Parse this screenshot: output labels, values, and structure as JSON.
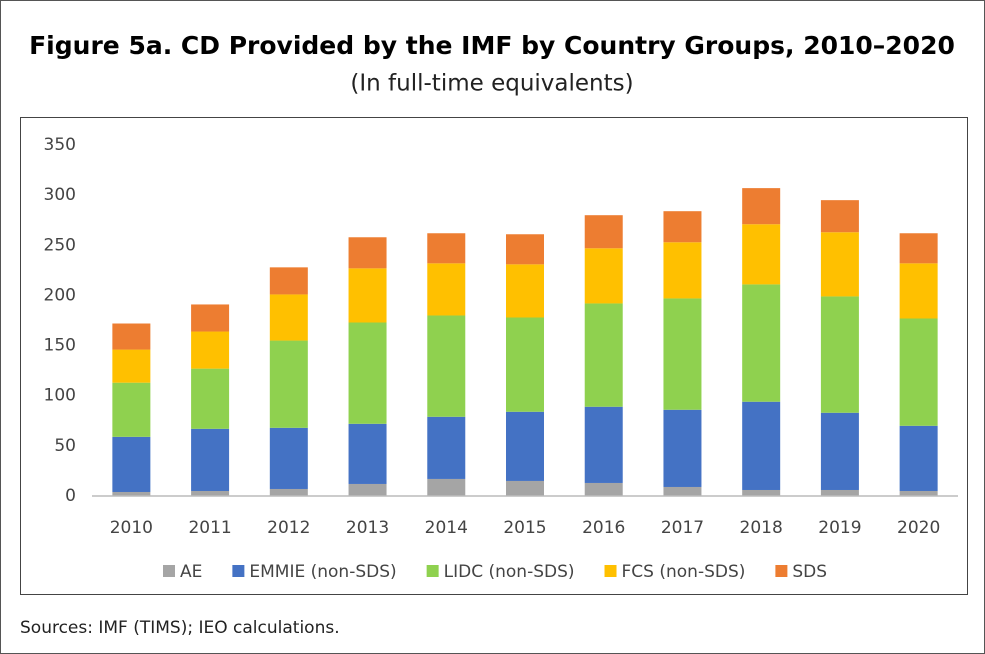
{
  "chart_data": {
    "type": "stacked_bar",
    "title": "Figure 5a. CD Provided by the IMF by Country Groups, 2010–2020",
    "subtitle": "(In full-time equivalents)",
    "source": "Sources: IMF (TIMS); IEO calculations.",
    "categories": [
      "2010",
      "2011",
      "2012",
      "2013",
      "2014",
      "2015",
      "2016",
      "2017",
      "2018",
      "2019",
      "2020"
    ],
    "series": [
      {
        "name": "AE",
        "color": "#a5a5a5",
        "values": [
          4,
          5,
          7,
          12,
          17,
          15,
          13,
          9,
          6,
          6,
          5
        ]
      },
      {
        "name": "EMMIE (non-SDS)",
        "color": "#4472c4",
        "values": [
          55,
          62,
          61,
          60,
          62,
          69,
          76,
          77,
          88,
          77,
          65
        ]
      },
      {
        "name": "LIDC (non-SDS)",
        "color": "#8fd14f",
        "values": [
          54,
          60,
          87,
          101,
          101,
          94,
          103,
          111,
          117,
          116,
          107
        ]
      },
      {
        "name": "FCS (non-SDS)",
        "color": "#ffc000",
        "values": [
          33,
          37,
          46,
          54,
          52,
          53,
          55,
          56,
          60,
          64,
          55
        ]
      },
      {
        "name": "SDS",
        "color": "#ed7d31",
        "values": [
          26,
          27,
          27,
          31,
          30,
          30,
          33,
          31,
          36,
          32,
          30
        ]
      }
    ],
    "ylim": [
      0,
      350
    ],
    "yticks": [
      0,
      50,
      100,
      150,
      200,
      250,
      300,
      350
    ],
    "grid": false,
    "legend": "bottom"
  }
}
